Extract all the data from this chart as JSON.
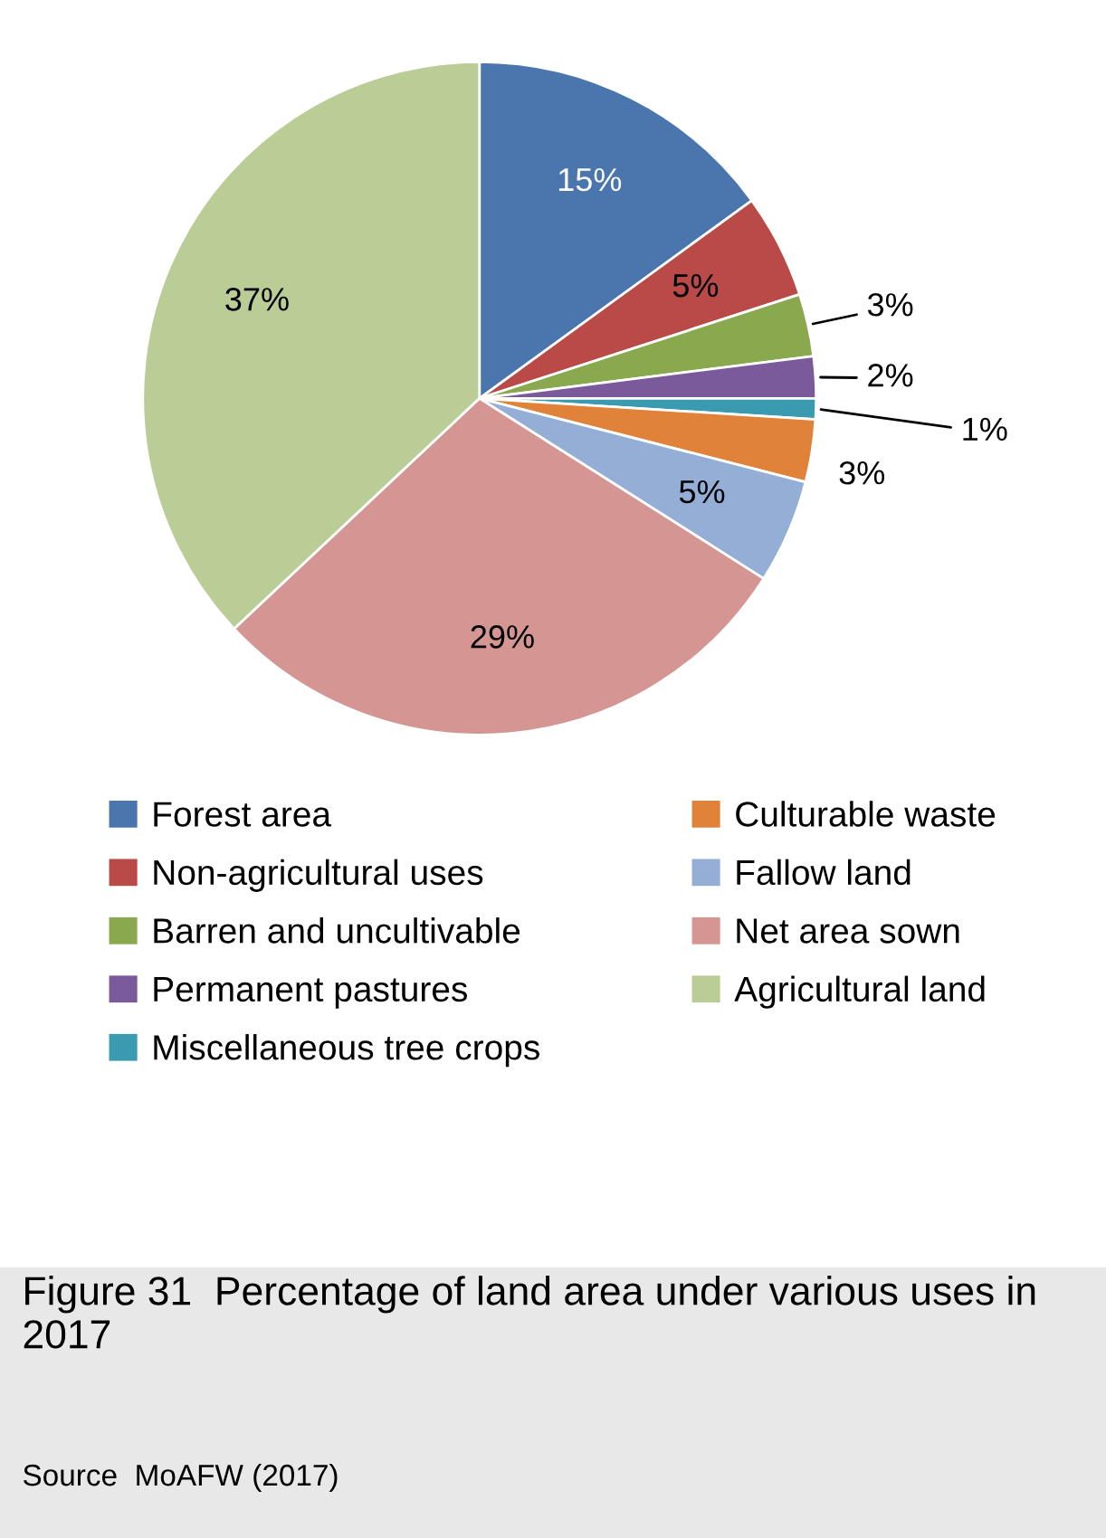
{
  "chart_data": {
    "type": "pie",
    "title": "Figure 31  Percentage of land area under various uses in 2017",
    "annotations": [
      "Source  MoAFW (2017)"
    ],
    "categories": [
      "Forest area",
      "Non-agricultural uses",
      "Barren and uncultivable",
      "Permanent pastures",
      "Miscellaneous tree crops",
      "Culturable waste",
      "Fallow land",
      "Net area sown",
      "Agricultural land"
    ],
    "values": [
      15,
      5,
      3,
      2,
      1,
      3,
      5,
      29,
      37
    ],
    "colors": [
      "#4a76ad",
      "#b94a48",
      "#8aa84e",
      "#7a5a9a",
      "#3a9ab0",
      "#e0823a",
      "#94aed6",
      "#d49593",
      "#bacd96"
    ],
    "value_labels": [
      "15%",
      "5%",
      "3%",
      "2%",
      "1%",
      "3%",
      "5%",
      "29%",
      "37%"
    ],
    "legend": "bottom"
  }
}
